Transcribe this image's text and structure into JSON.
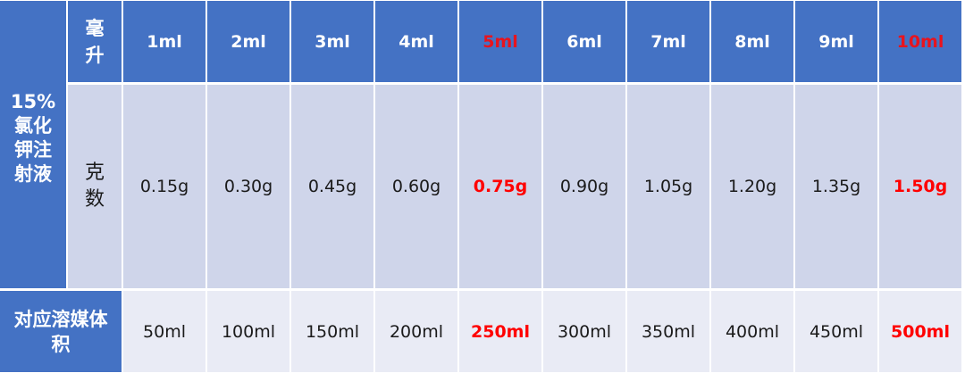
{
  "row_group_label": "15%氯化钾注射液",
  "header_unit_label": "毫升",
  "grams_label": "克数",
  "solvent_label": "对应溶媒体积",
  "highlight_color": "#FF0000",
  "header_color": "#4472C4",
  "columns": [
    {
      "ml": "1ml",
      "grams": "0.15g",
      "solvent": "50ml",
      "highlight": false
    },
    {
      "ml": "2ml",
      "grams": "0.30g",
      "solvent": "100ml",
      "highlight": false
    },
    {
      "ml": "3ml",
      "grams": "0.45g",
      "solvent": "150ml",
      "highlight": false
    },
    {
      "ml": "4ml",
      "grams": "0.60g",
      "solvent": "200ml",
      "highlight": false
    },
    {
      "ml": "5ml",
      "grams": "0.75g",
      "solvent": "250ml",
      "highlight": true
    },
    {
      "ml": "6ml",
      "grams": "0.90g",
      "solvent": "300ml",
      "highlight": false
    },
    {
      "ml": "7ml",
      "grams": "1.05g",
      "solvent": "350ml",
      "highlight": false
    },
    {
      "ml": "8ml",
      "grams": "1.20g",
      "solvent": "400ml",
      "highlight": false
    },
    {
      "ml": "9ml",
      "grams": "1.35g",
      "solvent": "450ml",
      "highlight": false
    },
    {
      "ml": "10ml",
      "grams": "1.50g",
      "solvent": "500ml",
      "highlight": true
    }
  ]
}
